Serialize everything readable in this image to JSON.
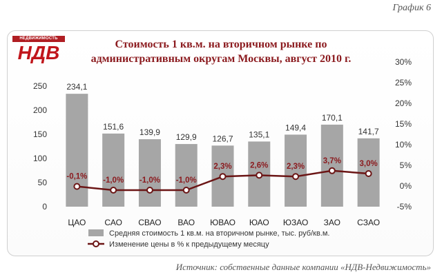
{
  "header": {
    "graph_label": "График 6"
  },
  "logo": {
    "top_text": "НЕДВИЖИМОСТЬ",
    "main_text": "НДВ"
  },
  "footer": {
    "source": "Источник: собственные данные компании «НДВ-Недвижимость»"
  },
  "chart_data": {
    "type": "bar",
    "title_line1": "Стоимость 1 кв.м. на вторичном рынке по",
    "title_line2": "административным округам Москвы, август 2010 г.",
    "categories": [
      "ЦАО",
      "САО",
      "СВАО",
      "ВАО",
      "ЮВАО",
      "ЮАО",
      "ЮЗАО",
      "ЗАО",
      "СЗАО"
    ],
    "series": [
      {
        "name": "Средняя стоимость 1 кв.м. на вторичном рынке, тыс. руб/кв.м.",
        "kind": "bar",
        "axis": "left",
        "color": "#a6a6a6",
        "values": [
          234.1,
          151.6,
          139.9,
          129.9,
          126.7,
          135.1,
          149.4,
          170.1,
          141.7
        ],
        "labels": [
          "234,1",
          "151,6",
          "139,9",
          "129,9",
          "126,7",
          "135,1",
          "149,4",
          "170,1",
          "141,7"
        ]
      },
      {
        "name": "Изменение цены в % к предыдущему месяцу",
        "kind": "line",
        "axis": "right",
        "color": "#6b1515",
        "values": [
          -0.1,
          -1.0,
          -1.0,
          -1.0,
          2.3,
          2.6,
          2.3,
          3.7,
          3.0
        ],
        "labels": [
          "-0,1%",
          "-1,0%",
          "-1,0%",
          "-1,0%",
          "2,3%",
          "2,6%",
          "2,3%",
          "3,7%",
          "3,0%"
        ]
      }
    ],
    "y_left": {
      "min": 0,
      "max": 300,
      "ticks": [
        "0",
        "50",
        "100",
        "150",
        "200",
        "250"
      ]
    },
    "y_right": {
      "min": -5,
      "max": 30,
      "ticks": [
        "-5%",
        "0%",
        "5%",
        "10%",
        "15%",
        "20%",
        "25%",
        "30%"
      ]
    },
    "grid": false,
    "legend_position": "bottom"
  }
}
